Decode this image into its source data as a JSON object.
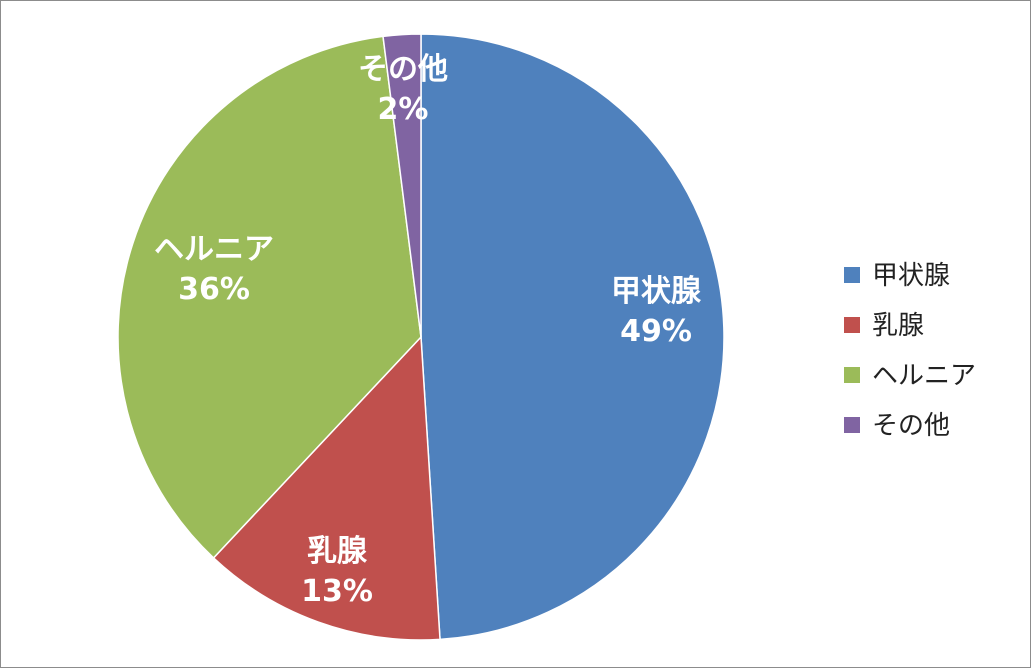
{
  "chart_data": {
    "type": "pie",
    "categories": [
      "甲状腺",
      "乳腺",
      "ヘルニア",
      "その他"
    ],
    "values": [
      49,
      13,
      36,
      2
    ],
    "percent_labels": [
      "49%",
      "13%",
      "36%",
      "2%"
    ],
    "colors": [
      "#4f81bd",
      "#c0504d",
      "#9bbb59",
      "#8064a2"
    ],
    "title": "",
    "legend": {
      "placement": "right",
      "entries": [
        "甲状腺",
        "乳腺",
        "ヘルニア",
        "その他"
      ]
    }
  }
}
